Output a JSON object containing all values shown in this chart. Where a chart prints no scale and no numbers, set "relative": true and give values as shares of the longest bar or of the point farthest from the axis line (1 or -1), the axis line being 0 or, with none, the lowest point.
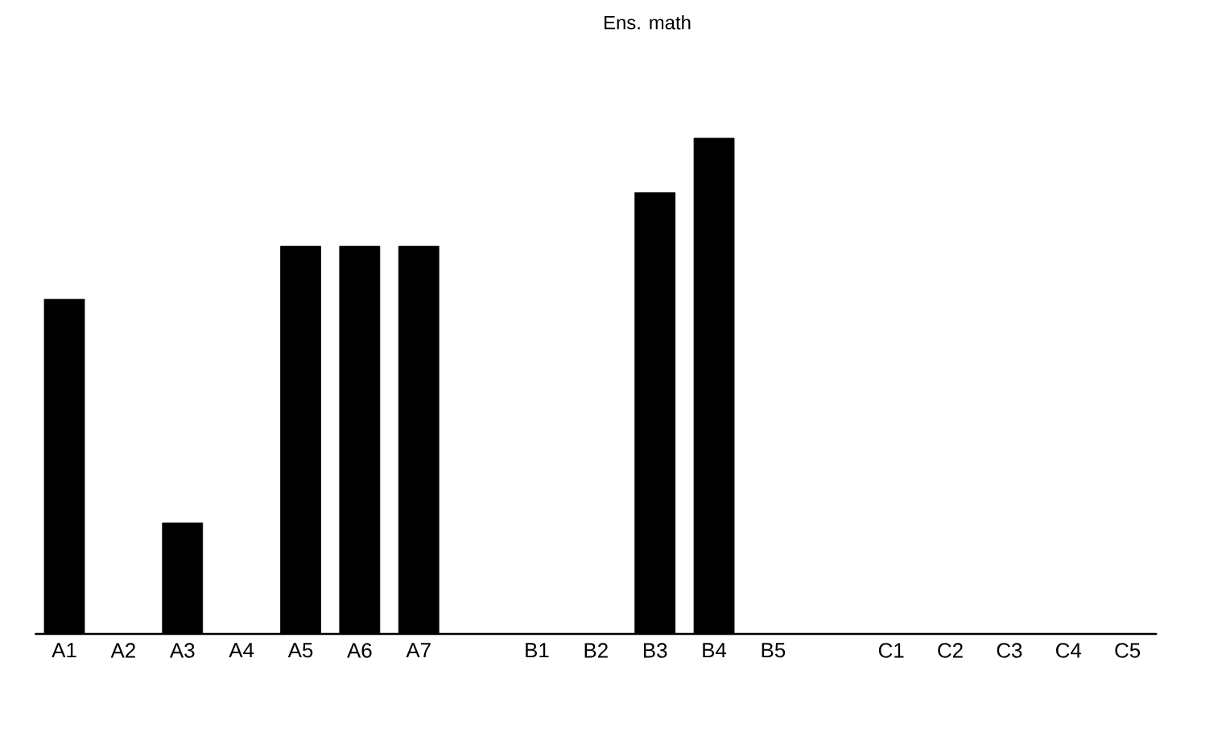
{
  "chart_data": {
    "type": "bar",
    "title": "Ens. math",
    "categories": [
      "A1",
      "A2",
      "A3",
      "A4",
      "A5",
      "A6",
      "A7",
      null,
      "B1",
      "B2",
      "B3",
      "B4",
      "B5",
      null,
      "C1",
      "C2",
      "C3",
      "C4",
      "C5"
    ],
    "values": [
      0.675,
      null,
      0.224,
      null,
      0.782,
      0.782,
      0.782,
      null,
      null,
      null,
      0.89,
      1,
      null,
      null,
      null,
      null,
      null,
      null,
      null
    ],
    "color": "#000000",
    "relative": true
  }
}
